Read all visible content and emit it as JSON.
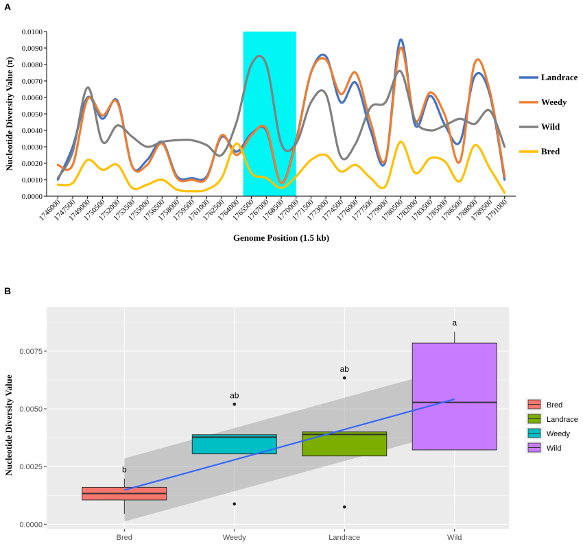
{
  "chart_data": [
    {
      "panel_label": "A",
      "type": "line",
      "ylabel": "Nucleotide Diversity Value (π)",
      "xlabel": "Genome Position (1.5 kb)",
      "ylim": [
        0,
        0.01
      ],
      "yticks": [
        "0.0000",
        "0.0010",
        "0.0020",
        "0.0030",
        "0.0040",
        "0.0050",
        "0.0060",
        "0.0070",
        "0.0080",
        "0.0090",
        "0.0100"
      ],
      "categories": [
        "1746000",
        "1747500",
        "1749000",
        "1750500",
        "1752000",
        "1753500",
        "1755000",
        "1756500",
        "1758000",
        "1759500",
        "1761000",
        "1762500",
        "1764000",
        "1765500",
        "1767000",
        "1768500",
        "1770000",
        "1771500",
        "1773000",
        "1774500",
        "1776000",
        "1777500",
        "1779000",
        "1780500",
        "1782000",
        "1783500",
        "1785000",
        "1786500",
        "1788000",
        "1789500",
        "1791000"
      ],
      "highlight": {
        "from": "1765500",
        "to": "1770000",
        "color": "#00f5f5"
      },
      "legend_position": "right",
      "series": [
        {
          "name": "Landrace",
          "color": "#4472c4",
          "values": [
            0.001,
            0.003,
            0.006,
            0.0047,
            0.0058,
            0.0018,
            0.0022,
            0.0033,
            0.0012,
            0.0011,
            0.0012,
            0.0036,
            0.0027,
            0.0038,
            0.004,
            0.0008,
            0.0034,
            0.0075,
            0.0085,
            0.0057,
            0.0069,
            0.004,
            0.0021,
            0.0095,
            0.0043,
            0.0061,
            0.0043,
            0.0033,
            0.0073,
            0.0062,
            0.001
          ]
        },
        {
          "name": "Weedy",
          "color": "#ed7d31",
          "values": [
            0.0019,
            0.0019,
            0.0059,
            0.0049,
            0.0057,
            0.0018,
            0.0019,
            0.0032,
            0.0011,
            0.001,
            0.0011,
            0.0037,
            0.0025,
            0.0037,
            0.0041,
            0.0008,
            0.0033,
            0.0075,
            0.0083,
            0.0062,
            0.0075,
            0.0045,
            0.0022,
            0.009,
            0.0046,
            0.0063,
            0.0049,
            0.0021,
            0.0081,
            0.0064,
            0.0012
          ]
        },
        {
          "name": "Wild",
          "color": "#808080",
          "values": [
            0.0011,
            0.0027,
            0.0066,
            0.0033,
            0.0043,
            0.0036,
            0.003,
            0.0033,
            0.0034,
            0.0034,
            0.0031,
            0.0025,
            0.0045,
            0.008,
            0.008,
            0.0032,
            0.0032,
            0.0057,
            0.0062,
            0.0024,
            0.0032,
            0.0054,
            0.0057,
            0.0076,
            0.0046,
            0.004,
            0.0043,
            0.0047,
            0.0044,
            0.0052,
            0.003
          ]
        },
        {
          "name": "Bred",
          "color": "#ffc000",
          "values": [
            0.0007,
            0.0008,
            0.0022,
            0.0016,
            0.0019,
            0.0005,
            0.0007,
            0.001,
            0.0004,
            0.0003,
            0.0004,
            0.0011,
            0.0032,
            0.0014,
            0.0011,
            0.0005,
            0.0012,
            0.0022,
            0.0025,
            0.0015,
            0.0019,
            0.0011,
            0.0006,
            0.0033,
            0.0014,
            0.0023,
            0.0021,
            0.0009,
            0.0031,
            0.0017,
            0.0002
          ]
        }
      ]
    },
    {
      "panel_label": "B",
      "type": "box",
      "ylabel": "Nucleotide Diversity Value",
      "ylim": [
        -0.0002,
        0.0094
      ],
      "yticks": [
        "0.0000",
        "0.0025",
        "0.0050",
        "0.0075"
      ],
      "categories": [
        "Bred",
        "Weedy",
        "Landrace",
        "Wild"
      ],
      "legend_position": "right",
      "legend": [
        "Bred",
        "Landrace",
        "Weedy",
        "Wild"
      ],
      "boxes": [
        {
          "name": "Bred",
          "color": "#f8766d",
          "lower_whisker": 0.00045,
          "q1": 0.00105,
          "median": 0.00133,
          "q3": 0.0016,
          "upper_whisker": 0.00198,
          "outliers": [],
          "letter": "b"
        },
        {
          "name": "Weedy",
          "color": "#00bfc4",
          "lower_whisker": 0.00305,
          "q1": 0.00305,
          "median": 0.00377,
          "q3": 0.00388,
          "upper_whisker": 0.00388,
          "outliers": [
            0.00088,
            0.0052
          ],
          "letter": "ab"
        },
        {
          "name": "Landrace",
          "color": "#7cae00",
          "lower_whisker": 0.00296,
          "q1": 0.00296,
          "median": 0.00389,
          "q3": 0.004,
          "upper_whisker": 0.004,
          "outliers": [
            0.00075,
            0.00634
          ],
          "letter": "ab"
        },
        {
          "name": "Wild",
          "color": "#c77cff",
          "lower_whisker": 0.00322,
          "q1": 0.00322,
          "median": 0.00528,
          "q3": 0.00785,
          "upper_whisker": 0.00834,
          "outliers": [],
          "letter": "a"
        }
      ],
      "trend": {
        "color": "#3366ff",
        "start": 0.00148,
        "end": 0.00542,
        "ci_lower_start": 0.00012,
        "ci_upper_start": 0.00285,
        "ci_lower_end": 0.00405,
        "ci_upper_end": 0.0068
      }
    }
  ]
}
